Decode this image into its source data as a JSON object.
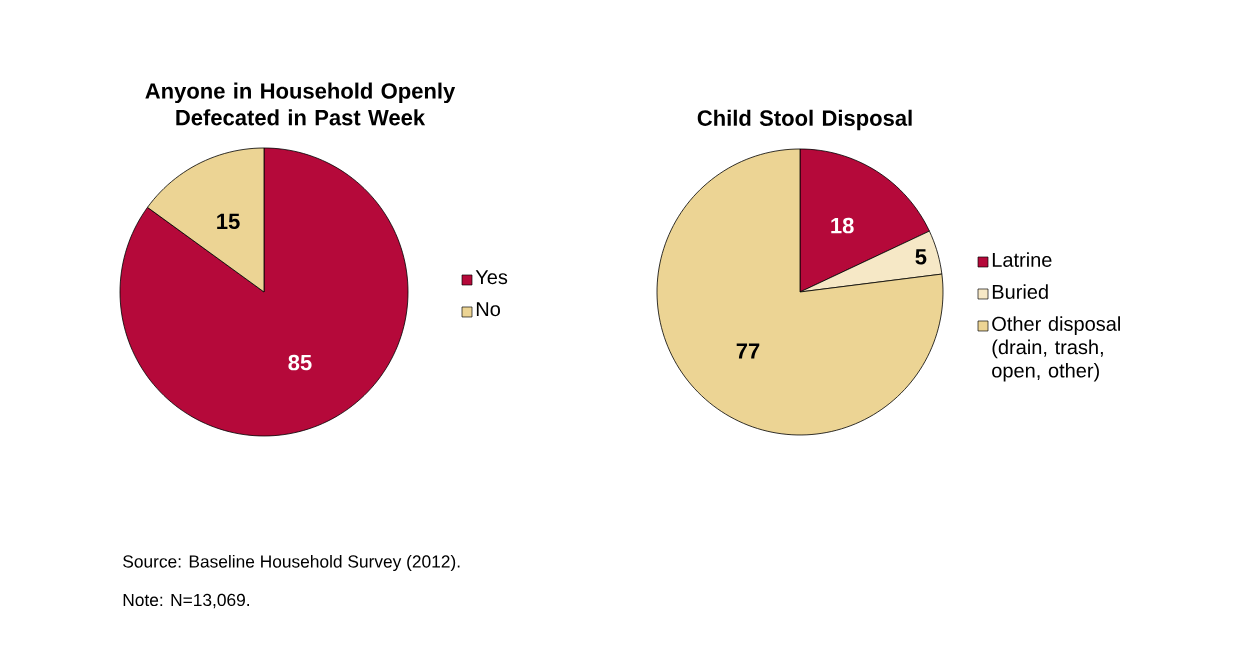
{
  "chart_data": [
    {
      "type": "pie",
      "title": "Anyone in Household Openly Defecated in Past Week",
      "categories": [
        "Yes",
        "No"
      ],
      "values": [
        85,
        15
      ],
      "colors": [
        "#b5093a",
        "#ecd494"
      ],
      "data_labels": true,
      "legend": "right",
      "annotations": [
        "Source: Baseline Household Survey (2012).",
        "Note: N=13,069."
      ]
    },
    {
      "type": "pie",
      "title": "Child Stool Disposal",
      "categories": [
        "Latrine",
        "Buried",
        "Other disposal (drain, trash, open, other)"
      ],
      "values": [
        18,
        5,
        77
      ],
      "colors": [
        "#b5093a",
        "#f6e8c6",
        "#ecd494"
      ],
      "data_labels": true,
      "legend": "right"
    }
  ]
}
